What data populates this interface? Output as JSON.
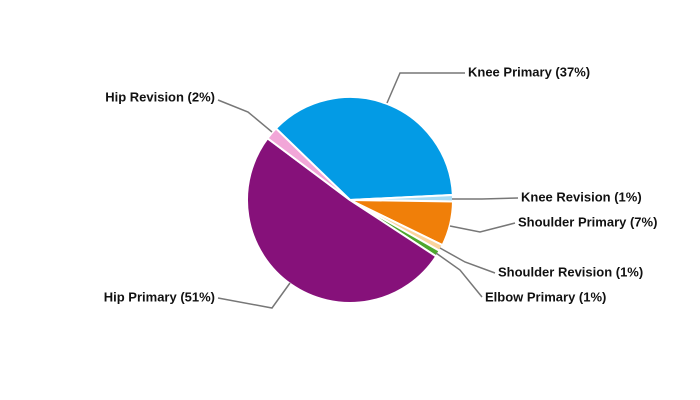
{
  "chart_data": {
    "type": "pie",
    "value_labels": [
      "Knee Primary (37%)",
      "Knee Revision (1%)",
      "Shoulder Primary (7%)",
      "Shoulder Revision (1%)",
      "Elbow Primary (1%)",
      "Hip Primary (51%)",
      "Hip Revision (2%)"
    ],
    "values": [
      37,
      1,
      7,
      1,
      1,
      51,
      2
    ],
    "colors": [
      "#039be5",
      "#a8dcf4",
      "#f07f09",
      "#fbd49c",
      "#4ea72e",
      "#86117a",
      "#f2a6d8"
    ]
  }
}
